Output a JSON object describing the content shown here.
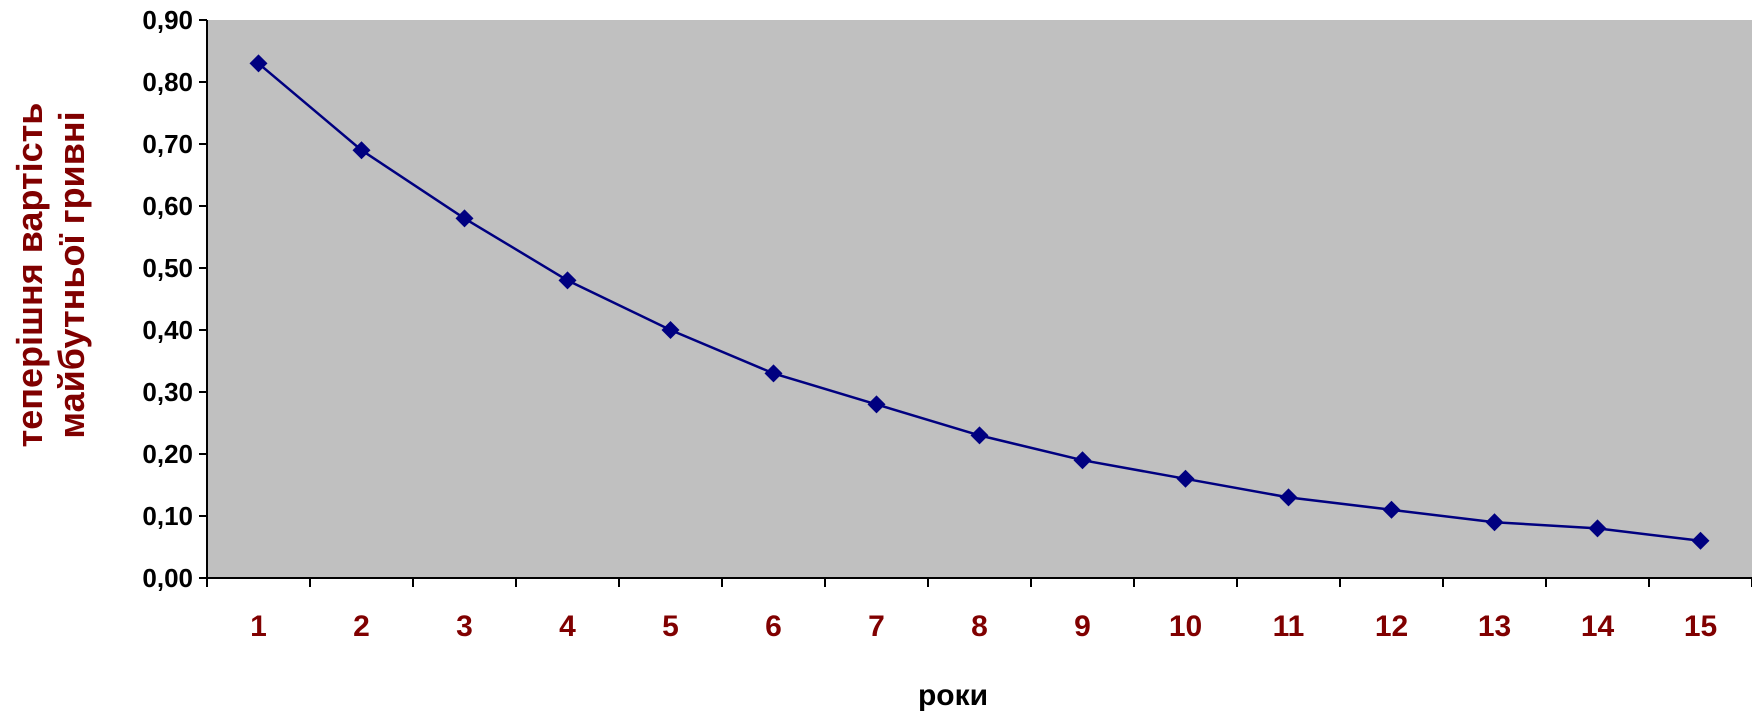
{
  "chart_data": {
    "type": "line",
    "title": "",
    "xlabel": "роки",
    "ylabel_lines": [
      "теперішня вартість",
      "майбутньої гривні"
    ],
    "categories": [
      "1",
      "2",
      "3",
      "4",
      "5",
      "6",
      "7",
      "8",
      "9",
      "10",
      "11",
      "12",
      "13",
      "14",
      "15"
    ],
    "series": [
      {
        "values": [
          0.83,
          0.69,
          0.58,
          0.48,
          0.4,
          0.33,
          0.28,
          0.23,
          0.19,
          0.16,
          0.13,
          0.11,
          0.09,
          0.08,
          0.06
        ]
      }
    ],
    "ylim": [
      0,
      0.9
    ],
    "yticks": [
      "0,00",
      "0,10",
      "0,20",
      "0,30",
      "0,40",
      "0,50",
      "0,60",
      "0,70",
      "0,80",
      "0,90"
    ],
    "grid": false,
    "legend": "none",
    "colors": {
      "plot_background": "#c0c0c0",
      "line": "#000080",
      "marker": "#000080",
      "x_tick_labels": "#800000",
      "y_axis_title": "#800000"
    }
  }
}
